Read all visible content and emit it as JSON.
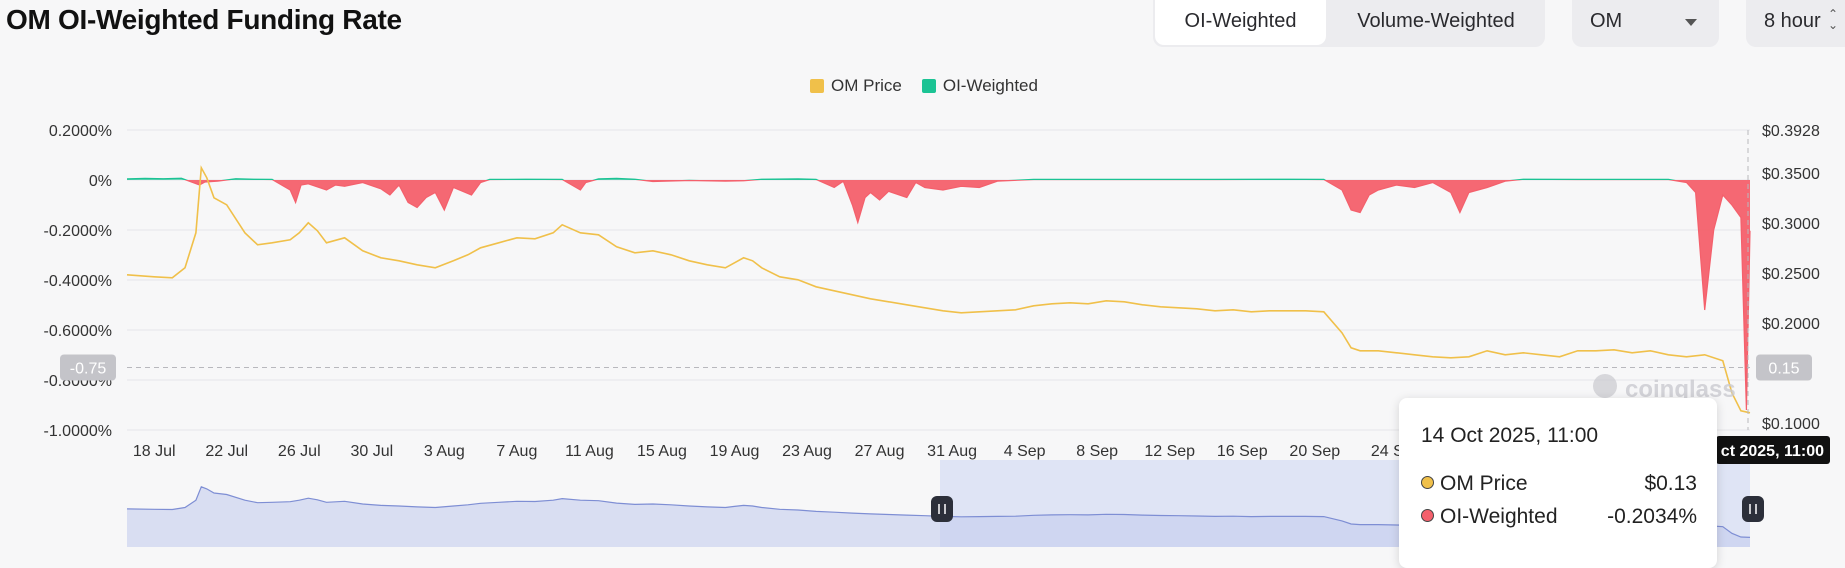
{
  "header": {
    "title": "OM OI-Weighted Funding Rate",
    "tabs": [
      {
        "label": "OI-Weighted",
        "active": true
      },
      {
        "label": "Volume-Weighted",
        "active": false
      }
    ],
    "coin_select": {
      "value": "OM",
      "icon": "chevron-down-icon"
    },
    "interval_select": {
      "value": "8 hour",
      "icon": "up-down-chevron-icon"
    }
  },
  "chart_data": {
    "type": "area",
    "legend": [
      {
        "label": "OM Price",
        "color": "#f0c04a"
      },
      {
        "label": "OI-Weighted",
        "color": "#1bc394"
      }
    ],
    "negative_color": "#f4606c",
    "y_left": {
      "ticks": [
        "0.2000%",
        "0%",
        "-0.2000%",
        "-0.4000%",
        "-0.6000%",
        "-0.8000%",
        "-1.0000%"
      ],
      "range": [
        -1.0,
        0.2
      ],
      "unit": "%"
    },
    "y_right": {
      "ticks": [
        "$0.3928",
        "$0.3500",
        "$0.3000",
        "$0.2500",
        "$0.2000",
        "$0.1000"
      ],
      "range": [
        0.0928,
        0.3928
      ]
    },
    "x_ticks": [
      "18 Jul",
      "22 Jul",
      "26 Jul",
      "30 Jul",
      "3 Aug",
      "7 Aug",
      "11 Aug",
      "15 Aug",
      "19 Aug",
      "23 Aug",
      "27 Aug",
      "31 Aug",
      "4 Sep",
      "8 Sep",
      "12 Sep",
      "16 Sep",
      "20 Sep",
      "24 S"
    ],
    "x_range_days": [
      0,
      89.5
    ],
    "crosshair": {
      "left_label": "-0.75",
      "right_label": "0.15",
      "x_label": "ct 2025, 11:00",
      "funding_value": -0.75
    },
    "price_series": [
      [
        0,
        0.248
      ],
      [
        1.5,
        0.246
      ],
      [
        2.5,
        0.245
      ],
      [
        3.2,
        0.255
      ],
      [
        3.8,
        0.29
      ],
      [
        4.1,
        0.355
      ],
      [
        4.4,
        0.345
      ],
      [
        4.8,
        0.325
      ],
      [
        5.5,
        0.318
      ],
      [
        6.5,
        0.29
      ],
      [
        7.2,
        0.278
      ],
      [
        8,
        0.28
      ],
      [
        9,
        0.283
      ],
      [
        9.5,
        0.29
      ],
      [
        10,
        0.3
      ],
      [
        10.5,
        0.292
      ],
      [
        11,
        0.28
      ],
      [
        12,
        0.285
      ],
      [
        13,
        0.272
      ],
      [
        14,
        0.265
      ],
      [
        15,
        0.262
      ],
      [
        16,
        0.258
      ],
      [
        17,
        0.255
      ],
      [
        18,
        0.262
      ],
      [
        18.8,
        0.268
      ],
      [
        19.5,
        0.275
      ],
      [
        20.5,
        0.28
      ],
      [
        21.5,
        0.285
      ],
      [
        22.5,
        0.284
      ],
      [
        23.5,
        0.29
      ],
      [
        24,
        0.298
      ],
      [
        25,
        0.29
      ],
      [
        26,
        0.288
      ],
      [
        27,
        0.276
      ],
      [
        28,
        0.27
      ],
      [
        29,
        0.272
      ],
      [
        30,
        0.268
      ],
      [
        31,
        0.262
      ],
      [
        32,
        0.258
      ],
      [
        33,
        0.255
      ],
      [
        33.5,
        0.26
      ],
      [
        34,
        0.265
      ],
      [
        34.5,
        0.262
      ],
      [
        35,
        0.255
      ],
      [
        36,
        0.246
      ],
      [
        37,
        0.243
      ],
      [
        38,
        0.236
      ],
      [
        39,
        0.232
      ],
      [
        40,
        0.228
      ],
      [
        41,
        0.224
      ],
      [
        42,
        0.221
      ],
      [
        43,
        0.218
      ],
      [
        44,
        0.215
      ],
      [
        45,
        0.212
      ],
      [
        46,
        0.21
      ],
      [
        47,
        0.211
      ],
      [
        48,
        0.212
      ],
      [
        49,
        0.213
      ],
      [
        50,
        0.217
      ],
      [
        51,
        0.219
      ],
      [
        52,
        0.22
      ],
      [
        53,
        0.219
      ],
      [
        54,
        0.222
      ],
      [
        55,
        0.221
      ],
      [
        56,
        0.218
      ],
      [
        57,
        0.216
      ],
      [
        58,
        0.215
      ],
      [
        59,
        0.214
      ],
      [
        60,
        0.212
      ],
      [
        61,
        0.213
      ],
      [
        62,
        0.211
      ],
      [
        63,
        0.212
      ],
      [
        64,
        0.212
      ],
      [
        65,
        0.212
      ],
      [
        66,
        0.211
      ],
      [
        67,
        0.19
      ],
      [
        67.5,
        0.175
      ],
      [
        68,
        0.172
      ],
      [
        69,
        0.172
      ],
      [
        70,
        0.17
      ],
      [
        71,
        0.168
      ],
      [
        72,
        0.166
      ],
      [
        73,
        0.165
      ],
      [
        74,
        0.166
      ],
      [
        75,
        0.172
      ],
      [
        76,
        0.168
      ],
      [
        77,
        0.17
      ],
      [
        78,
        0.168
      ],
      [
        79,
        0.166
      ],
      [
        80,
        0.172
      ],
      [
        81,
        0.172
      ],
      [
        82,
        0.173
      ],
      [
        83,
        0.17
      ],
      [
        84,
        0.172
      ],
      [
        85,
        0.168
      ],
      [
        86,
        0.166
      ],
      [
        87,
        0.168
      ],
      [
        88,
        0.162
      ],
      [
        88.5,
        0.13
      ],
      [
        89,
        0.112
      ],
      [
        89.5,
        0.11
      ]
    ],
    "funding_series": [
      [
        0,
        0.004
      ],
      [
        1,
        0.006
      ],
      [
        2,
        0.005
      ],
      [
        3,
        0.007
      ],
      [
        4,
        -0.02
      ],
      [
        4.3,
        -0.008
      ],
      [
        5,
        -0.005
      ],
      [
        6,
        0.005
      ],
      [
        7,
        0.003
      ],
      [
        8,
        0.002
      ],
      [
        9,
        -0.04
      ],
      [
        9.3,
        -0.09
      ],
      [
        9.6,
        -0.02
      ],
      [
        10,
        -0.015
      ],
      [
        11,
        -0.04
      ],
      [
        11.5,
        -0.02
      ],
      [
        12,
        -0.025
      ],
      [
        13,
        -0.01
      ],
      [
        14,
        -0.035
      ],
      [
        14.5,
        -0.06
      ],
      [
        15,
        -0.02
      ],
      [
        15.5,
        -0.09
      ],
      [
        16,
        -0.11
      ],
      [
        16.5,
        -0.07
      ],
      [
        17,
        -0.05
      ],
      [
        17.5,
        -0.12
      ],
      [
        18,
        -0.03
      ],
      [
        19,
        -0.06
      ],
      [
        19.5,
        -0.01
      ],
      [
        20,
        0.002
      ],
      [
        22,
        0.003
      ],
      [
        24,
        0.002
      ],
      [
        25,
        -0.04
      ],
      [
        25.3,
        -0.01
      ],
      [
        26,
        0.004
      ],
      [
        27,
        0.006
      ],
      [
        28,
        0.003
      ],
      [
        29,
        -0.006
      ],
      [
        31,
        -0.002
      ],
      [
        33,
        -0.005
      ],
      [
        34,
        -0.003
      ],
      [
        35,
        0.003
      ],
      [
        37,
        0.004
      ],
      [
        38,
        0.002
      ],
      [
        39,
        -0.03
      ],
      [
        39.5,
        -0.005
      ],
      [
        40,
        -0.1
      ],
      [
        40.3,
        -0.17
      ],
      [
        40.7,
        -0.07
      ],
      [
        41,
        -0.05
      ],
      [
        41.5,
        -0.08
      ],
      [
        42,
        -0.045
      ],
      [
        43,
        -0.07
      ],
      [
        43.5,
        -0.01
      ],
      [
        44,
        -0.03
      ],
      [
        45,
        -0.04
      ],
      [
        46,
        -0.025
      ],
      [
        47,
        -0.03
      ],
      [
        48,
        -0.005
      ],
      [
        50,
        0.002
      ],
      [
        55,
        0.002
      ],
      [
        60,
        0.002
      ],
      [
        64,
        0.003
      ],
      [
        66,
        0.002
      ],
      [
        67,
        -0.04
      ],
      [
        67.5,
        -0.12
      ],
      [
        68,
        -0.13
      ],
      [
        68.5,
        -0.06
      ],
      [
        69,
        -0.04
      ],
      [
        70,
        -0.02
      ],
      [
        71,
        -0.03
      ],
      [
        72,
        -0.01
      ],
      [
        73,
        -0.05
      ],
      [
        73.5,
        -0.13
      ],
      [
        74,
        -0.05
      ],
      [
        75,
        -0.03
      ],
      [
        76,
        -0.005
      ],
      [
        77,
        0.003
      ],
      [
        80,
        0.002
      ],
      [
        85,
        0.002
      ],
      [
        86,
        -0.01
      ],
      [
        86.5,
        -0.05
      ],
      [
        87,
        -0.52
      ],
      [
        87.5,
        -0.2
      ],
      [
        88,
        -0.06
      ],
      [
        88.5,
        -0.1
      ],
      [
        89,
        -0.15
      ],
      [
        89.3,
        -0.92
      ],
      [
        89.5,
        -0.2034
      ]
    ]
  },
  "navigator": {
    "handle_icon": "pause-grip-icon"
  },
  "tooltip": {
    "date": "14 Oct 2025, 11:00",
    "rows": [
      {
        "label": "OM Price",
        "value": "$0.13",
        "color": "#f0c04a"
      },
      {
        "label": "OI-Weighted",
        "value": "-0.2034%",
        "color": "#f4606c"
      }
    ]
  },
  "watermark": "coinglass"
}
